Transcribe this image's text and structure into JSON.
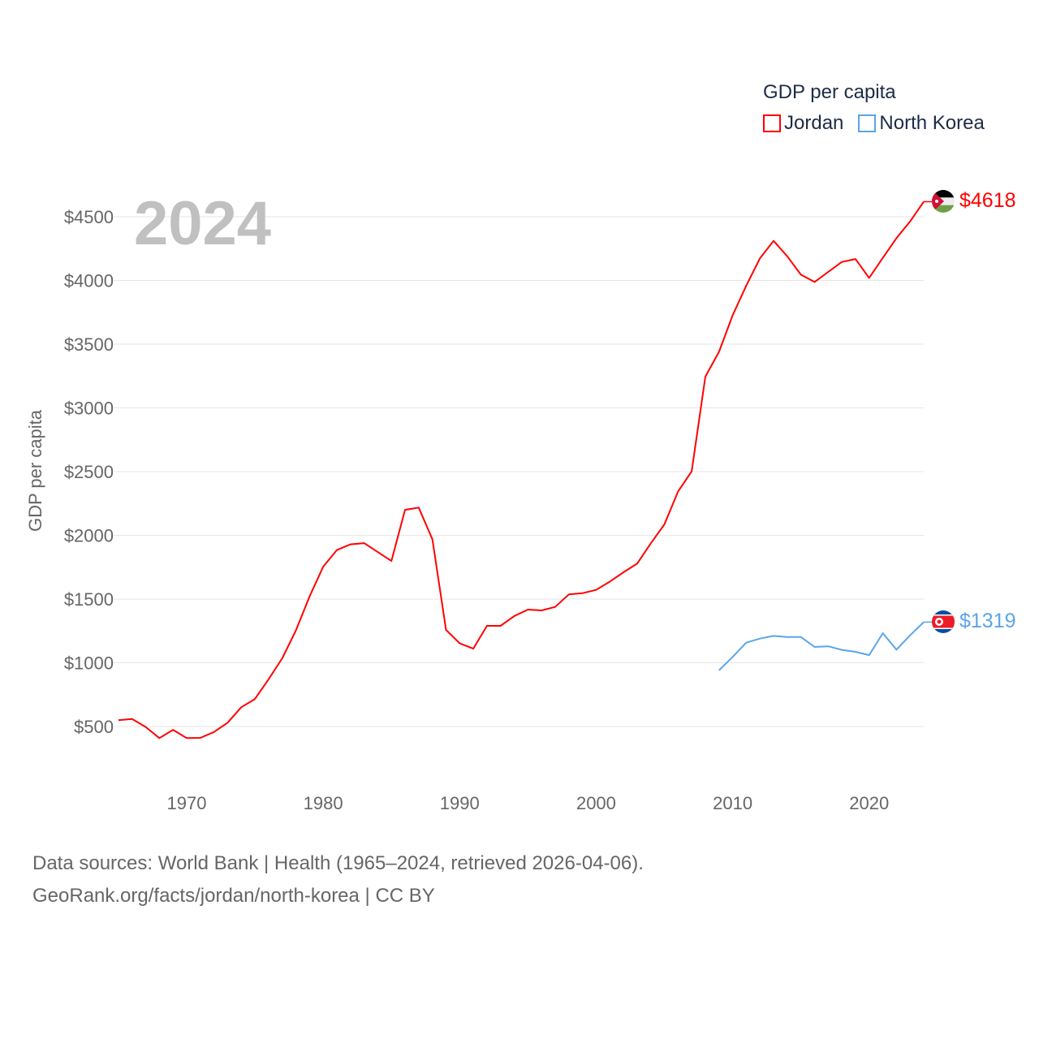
{
  "legend": {
    "title": "GDP per capita",
    "items": [
      {
        "label": "Jordan",
        "color": "#ff0000"
      },
      {
        "label": "North Korea",
        "color": "#5aa5ea"
      }
    ]
  },
  "footer": {
    "line1": "Data sources: World Bank | Health (1965–2024, retrieved 2026-04-06).",
    "line2": "GeoRank.org/facts/jordan/north-korea | CC BY"
  },
  "chart_data": {
    "type": "line",
    "title": "GDP per capita",
    "year_label": "2024",
    "xlabel": "",
    "ylabel": "GDP per capita",
    "xlim": [
      1965,
      2024
    ],
    "ylim": [
      0,
      4700
    ],
    "grid": true,
    "legend_position": "top-right",
    "x_ticks": [
      1970,
      1980,
      1990,
      2000,
      2010,
      2020
    ],
    "y_ticks": [
      500,
      1000,
      1500,
      2000,
      2500,
      3000,
      3500,
      4000,
      4500
    ],
    "y_tick_labels": [
      "$500",
      "$1000",
      "$1500",
      "$2000",
      "$2500",
      "$3000",
      "$3500",
      "$4000",
      "$4500"
    ],
    "series": [
      {
        "name": "Jordan",
        "color": "#ff0000",
        "end_label": "$4618",
        "x": [
          1965,
          1966,
          1967,
          1968,
          1969,
          1970,
          1971,
          1972,
          1973,
          1974,
          1975,
          1976,
          1977,
          1978,
          1979,
          1980,
          1981,
          1982,
          1983,
          1984,
          1985,
          1986,
          1987,
          1988,
          1989,
          1990,
          1991,
          1992,
          1993,
          1994,
          1995,
          1996,
          1997,
          1998,
          1999,
          2000,
          2001,
          2002,
          2003,
          2004,
          2005,
          2006,
          2007,
          2008,
          2009,
          2010,
          2011,
          2012,
          2013,
          2014,
          2015,
          2016,
          2017,
          2018,
          2019,
          2020,
          2021,
          2022,
          2023,
          2024
        ],
        "values": [
          549,
          559,
          496,
          409,
          474,
          409,
          411,
          457,
          530,
          651,
          716,
          871,
          1035,
          1253,
          1519,
          1753,
          1884,
          1929,
          1939,
          1869,
          1799,
          2200,
          2218,
          1969,
          1258,
          1152,
          1111,
          1290,
          1290,
          1366,
          1417,
          1411,
          1438,
          1536,
          1546,
          1572,
          1636,
          1710,
          1778,
          1937,
          2086,
          2343,
          2502,
          3245,
          3440,
          3727,
          3960,
          4173,
          4311,
          4190,
          4045,
          3988,
          4067,
          4145,
          4168,
          4020,
          4177,
          4332,
          4463,
          4618
        ]
      },
      {
        "name": "North Korea",
        "color": "#5aa5ea",
        "end_label": "$1319",
        "x": [
          2009,
          2010,
          2011,
          2012,
          2013,
          2014,
          2015,
          2016,
          2017,
          2018,
          2019,
          2020,
          2021,
          2022,
          2023,
          2024
        ],
        "values": [
          941,
          1046,
          1158,
          1190,
          1211,
          1202,
          1202,
          1124,
          1129,
          1101,
          1086,
          1060,
          1232,
          1103,
          1215,
          1319
        ]
      }
    ]
  }
}
